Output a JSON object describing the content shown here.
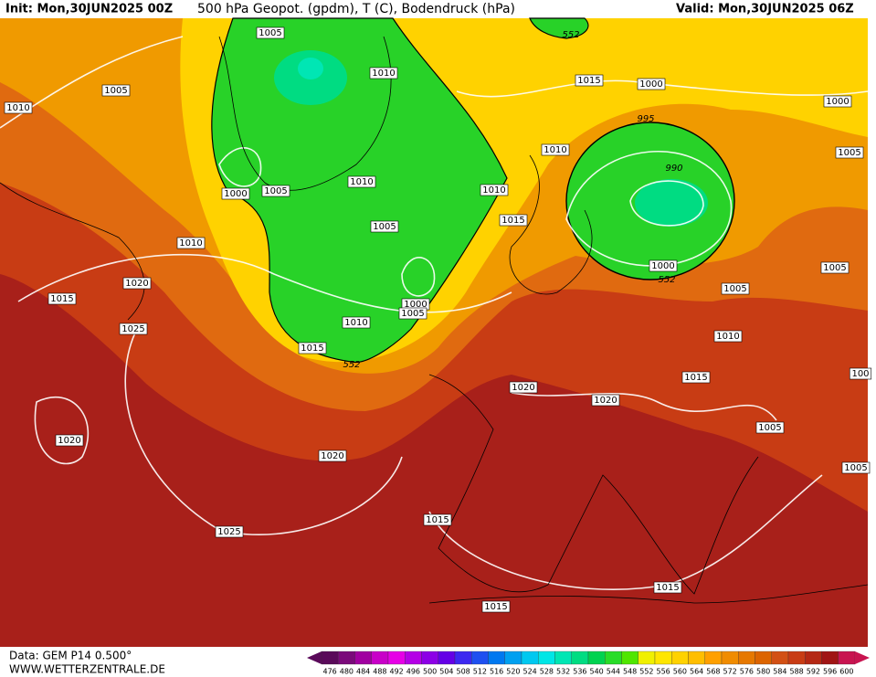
{
  "header": {
    "init": "Init: Mon,30JUN2025 00Z",
    "title": "500 hPa Geopot. (gpdm), T (C), Bodendruck (hPa)",
    "valid": "Valid: Mon,30JUN2025 06Z"
  },
  "isobar_labels": [
    1005,
    1010,
    1005,
    1010,
    1015,
    1000,
    1000,
    995,
    552,
    1010,
    990,
    1005,
    1000,
    1005,
    1010,
    1010,
    1015,
    1005,
    1010,
    1020,
    1015,
    1000,
    1005,
    1010,
    1000,
    552,
    1005,
    1005,
    1025,
    1015,
    552,
    1010,
    1015,
    100,
    1020,
    1020,
    1005,
    1020,
    1020,
    1005,
    1015,
    1025,
    1015,
    1015
  ],
  "colorbar": {
    "ticks": [
      476,
      480,
      484,
      488,
      492,
      496,
      500,
      504,
      508,
      512,
      516,
      520,
      524,
      528,
      532,
      536,
      540,
      544,
      548,
      552,
      556,
      560,
      564,
      568,
      572,
      576,
      580,
      584,
      588,
      592,
      596,
      600
    ],
    "colors": [
      "#5a0a5a",
      "#7a0a7a",
      "#a000a0",
      "#c800c8",
      "#e600e6",
      "#b400e6",
      "#8c00e6",
      "#6400e6",
      "#3c28f0",
      "#1e50f0",
      "#0078f0",
      "#00a0f0",
      "#00c8f0",
      "#00e6e6",
      "#00e6b4",
      "#00dc82",
      "#00d250",
      "#28dc28",
      "#50e600",
      "#f0f000",
      "#ffe600",
      "#ffd200",
      "#ffbe00",
      "#ffa000",
      "#f08c00",
      "#e67800",
      "#dc6400",
      "#d25014",
      "#c83c14",
      "#b42814",
      "#a01414",
      "#c81450"
    ]
  },
  "footer": {
    "data": "Data: GEM P14 0.500°",
    "site": "WWW.WETTERZENTRALE.DE"
  }
}
